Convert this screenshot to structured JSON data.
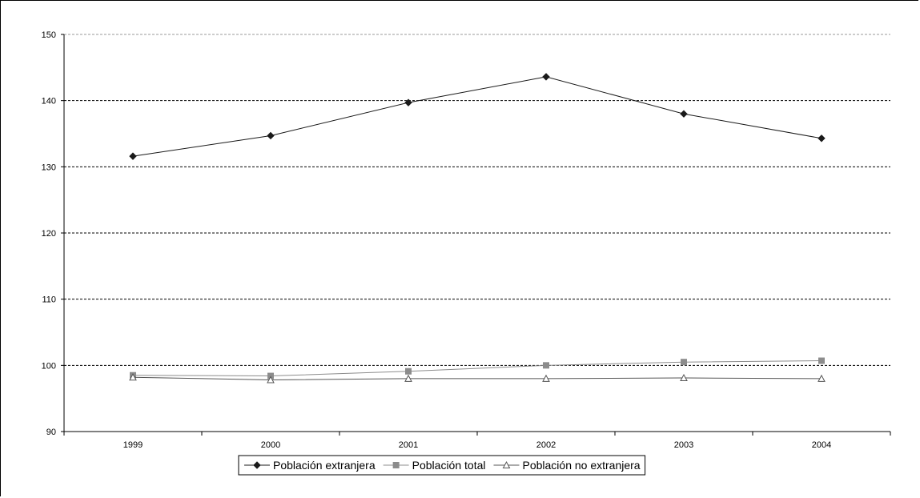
{
  "chart_data": {
    "type": "line",
    "categories": [
      "1999",
      "2000",
      "2001",
      "2002",
      "2003",
      "2004"
    ],
    "ylim": [
      90,
      150
    ],
    "yticks": [
      90,
      100,
      110,
      120,
      130,
      140,
      150
    ],
    "grid": true,
    "legend_position": "bottom",
    "series": [
      {
        "name": "Población extranjera",
        "values": [
          131.6,
          134.7,
          139.7,
          143.6,
          138.0,
          134.3
        ],
        "color": "#1a1a1a",
        "marker": "diamond"
      },
      {
        "name": "Población total",
        "values": [
          98.5,
          98.4,
          99.1,
          100.0,
          100.5,
          100.7
        ],
        "color": "#8c8c8c",
        "marker": "square"
      },
      {
        "name": "Población no extranjera",
        "values": [
          98.2,
          97.8,
          98.0,
          98.0,
          98.1,
          98.0
        ],
        "color": "#555555",
        "marker": "triangle"
      }
    ]
  }
}
